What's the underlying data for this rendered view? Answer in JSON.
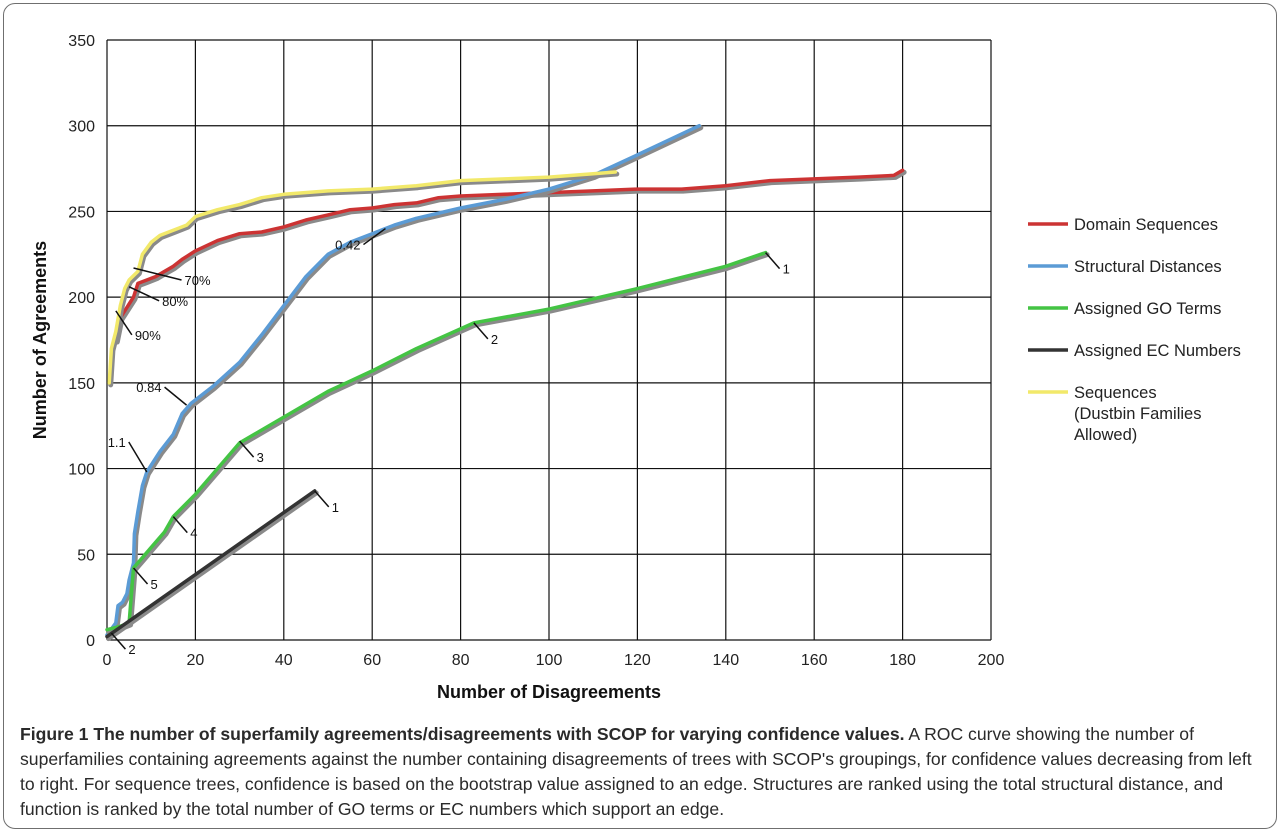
{
  "chart_data": {
    "type": "line",
    "xlabel": "Number of Disagreements",
    "ylabel": "Number of Agreements",
    "xlim": [
      0,
      200
    ],
    "ylim": [
      0,
      350
    ],
    "x_ticks": [
      0,
      20,
      40,
      60,
      80,
      100,
      120,
      140,
      160,
      180,
      200
    ],
    "y_ticks": [
      0,
      50,
      100,
      150,
      200,
      250,
      300,
      350
    ],
    "grid": true,
    "legend_position": "right",
    "series": [
      {
        "name": "Domain Sequences",
        "color": "#cc3333",
        "points": [
          [
            2,
            175
          ],
          [
            3,
            188
          ],
          [
            4,
            192
          ],
          [
            5,
            196
          ],
          [
            6,
            200
          ],
          [
            7,
            208
          ],
          [
            9,
            210
          ],
          [
            11,
            212
          ],
          [
            13,
            215
          ],
          [
            15,
            218
          ],
          [
            17,
            222
          ],
          [
            20,
            227
          ],
          [
            25,
            233
          ],
          [
            30,
            237
          ],
          [
            35,
            238
          ],
          [
            40,
            241
          ],
          [
            45,
            245
          ],
          [
            50,
            248
          ],
          [
            55,
            251
          ],
          [
            60,
            252
          ],
          [
            65,
            254
          ],
          [
            70,
            255
          ],
          [
            75,
            258
          ],
          [
            80,
            259
          ],
          [
            90,
            260
          ],
          [
            100,
            261
          ],
          [
            110,
            262
          ],
          [
            120,
            263
          ],
          [
            130,
            263
          ],
          [
            140,
            265
          ],
          [
            150,
            268
          ],
          [
            160,
            269
          ],
          [
            170,
            270
          ],
          [
            178,
            271
          ],
          [
            180,
            274
          ]
        ]
      },
      {
        "name": "Structural Distances",
        "color": "#5b9bd5",
        "points": [
          [
            0,
            3
          ],
          [
            2,
            10
          ],
          [
            2.5,
            20
          ],
          [
            3.5,
            22
          ],
          [
            4.5,
            27
          ],
          [
            5,
            35
          ],
          [
            6,
            45
          ],
          [
            6.2,
            62
          ],
          [
            7,
            75
          ],
          [
            8,
            90
          ],
          [
            9,
            98
          ],
          [
            12,
            110
          ],
          [
            15,
            120
          ],
          [
            17,
            132
          ],
          [
            19,
            138
          ],
          [
            24,
            148
          ],
          [
            30,
            162
          ],
          [
            35,
            178
          ],
          [
            40,
            195
          ],
          [
            45,
            212
          ],
          [
            50,
            225
          ],
          [
            55,
            232
          ],
          [
            60,
            237
          ],
          [
            65,
            242
          ],
          [
            70,
            246
          ],
          [
            80,
            252
          ],
          [
            90,
            257
          ],
          [
            100,
            263
          ],
          [
            110,
            271
          ],
          [
            120,
            283
          ],
          [
            134,
            300
          ]
        ]
      },
      {
        "name": "Assigned GO Terms",
        "color": "#44c444",
        "points": [
          [
            0,
            6
          ],
          [
            3,
            8
          ],
          [
            5,
            10
          ],
          [
            6,
            42
          ],
          [
            8,
            48
          ],
          [
            10,
            54
          ],
          [
            13,
            63
          ],
          [
            15,
            72
          ],
          [
            20,
            85
          ],
          [
            25,
            100
          ],
          [
            30,
            115
          ],
          [
            40,
            130
          ],
          [
            50,
            145
          ],
          [
            60,
            157
          ],
          [
            70,
            170
          ],
          [
            83,
            185
          ],
          [
            100,
            193
          ],
          [
            120,
            205
          ],
          [
            140,
            218
          ],
          [
            149,
            226
          ]
        ]
      },
      {
        "name": "Assigned EC Numbers",
        "color": "#333333",
        "points": [
          [
            0,
            2
          ],
          [
            47,
            87
          ]
        ]
      },
      {
        "name": "Sequences (Dustbin Families Allowed)",
        "color": "#f2e96a",
        "points": [
          [
            0.5,
            150
          ],
          [
            1,
            170
          ],
          [
            2,
            180
          ],
          [
            3,
            195
          ],
          [
            4,
            205
          ],
          [
            5,
            210
          ],
          [
            7,
            215
          ],
          [
            8,
            225
          ],
          [
            10,
            232
          ],
          [
            12,
            236
          ],
          [
            15,
            239
          ],
          [
            18,
            242
          ],
          [
            20,
            247
          ],
          [
            25,
            251
          ],
          [
            30,
            254
          ],
          [
            35,
            258
          ],
          [
            40,
            260
          ],
          [
            50,
            262
          ],
          [
            60,
            263
          ],
          [
            70,
            265
          ],
          [
            80,
            268
          ],
          [
            90,
            269
          ],
          [
            100,
            270
          ],
          [
            110,
            272
          ],
          [
            115,
            273
          ]
        ]
      }
    ],
    "annotations": [
      {
        "text": "70%",
        "series": "Sequences (Dustbin Families Allowed)",
        "point": [
          6,
          217
        ]
      },
      {
        "text": "80%",
        "series": "Domain Sequences",
        "point": [
          5,
          206
        ]
      },
      {
        "text": "90%",
        "series": "Sequences (Dustbin Families Allowed)",
        "point": [
          2,
          192
        ]
      },
      {
        "text": "0.42",
        "series": "Structural Distances",
        "point": [
          63,
          240
        ]
      },
      {
        "text": "0.84",
        "series": "Structural Distances",
        "point": [
          18,
          137
        ]
      },
      {
        "text": "1.1",
        "series": "Structural Distances",
        "point": [
          9,
          98
        ]
      },
      {
        "text": "1",
        "series": "Assigned GO Terms",
        "point": [
          149,
          226
        ]
      },
      {
        "text": "2",
        "series": "Assigned GO Terms",
        "point": [
          83,
          185
        ]
      },
      {
        "text": "3",
        "series": "Assigned GO Terms",
        "point": [
          30,
          116
        ]
      },
      {
        "text": "4",
        "series": "Assigned GO Terms",
        "point": [
          15,
          72
        ]
      },
      {
        "text": "5",
        "series": "Assigned GO Terms",
        "point": [
          6,
          42
        ]
      },
      {
        "text": "1",
        "series": "Assigned EC Numbers",
        "point": [
          47,
          87
        ]
      },
      {
        "text": "2",
        "series": "Assigned EC Numbers",
        "point": [
          1,
          4
        ]
      }
    ]
  },
  "caption": {
    "title": "Figure 1 The number of superfamily agreements/disagreements with SCOP for varying confidence values.",
    "body": " A ROC curve showing the number of superfamilies containing agreements against the number containing disagreements of trees with SCOP's groupings, for confidence values decreasing from left to right. For sequence trees, confidence is based on the bootstrap value assigned to an edge. Structures are ranked using the total structural distance, and function is ranked by the total number of GO terms or EC numbers which support an edge."
  }
}
